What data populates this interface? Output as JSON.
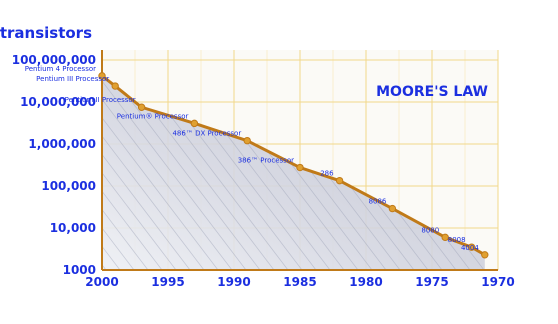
{
  "chart_data": {
    "type": "line",
    "title": "MOORE'S LAW",
    "ylabel": "transistors",
    "xlabel": "",
    "y_scale": "log",
    "ylim": [
      1000,
      100000000
    ],
    "xlim": [
      1970,
      2000
    ],
    "x_ticks": [
      "1970",
      "1975",
      "1980",
      "1985",
      "1990",
      "1995",
      "2000"
    ],
    "y_ticks": [
      "1000",
      "10,000",
      "100,000",
      "1,000,000",
      "10,000,000",
      "100,000,000"
    ],
    "mirrored": true,
    "colors": {
      "line": "#c07a18",
      "text": "#1b2fe0",
      "grid": "#f2d88a",
      "area": "#c9ccd9"
    },
    "series": [
      {
        "points": [
          {
            "label": "4004",
            "x": 1971,
            "y": 2300
          },
          {
            "label": "8008",
            "x": 1972,
            "y": 3500
          },
          {
            "label": "8080",
            "x": 1974,
            "y": 6000
          },
          {
            "label": "8086",
            "x": 1978,
            "y": 29000
          },
          {
            "label": "286",
            "x": 1982,
            "y": 134000
          },
          {
            "label": "386™ Processor",
            "x": 1985,
            "y": 275000
          },
          {
            "label": "486™ DX Processor",
            "x": 1989,
            "y": 1200000
          },
          {
            "label": "Pentium® Processor",
            "x": 1993,
            "y": 3100000
          },
          {
            "label": "Pentium II Processor",
            "x": 1997,
            "y": 7500000
          },
          {
            "label": "Pentium III Processor",
            "x": 1999,
            "y": 24000000
          },
          {
            "label": "Pentium 4 Processor",
            "x": 2000,
            "y": 42000000
          }
        ]
      }
    ]
  }
}
